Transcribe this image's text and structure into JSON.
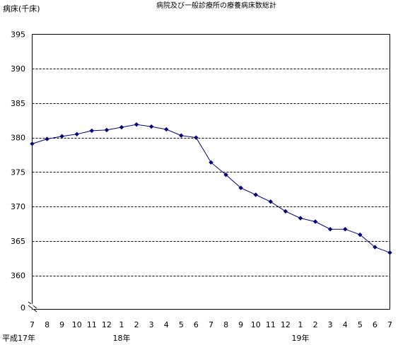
{
  "chart_data": {
    "type": "line",
    "title": "病院及び一般診療所の療養病床数総計",
    "ylabel": "病床(千床)",
    "xlabel": "",
    "y_tick_labels": [
      "395",
      "390",
      "385",
      "380",
      "375",
      "370",
      "365",
      "360",
      "0"
    ],
    "ylim": [
      360,
      395
    ],
    "axis_break": true,
    "grid": "horizontal dashed",
    "categories": [
      "7",
      "8",
      "9",
      "10",
      "11",
      "12",
      "1",
      "2",
      "3",
      "4",
      "5",
      "6",
      "7",
      "8",
      "9",
      "10",
      "11",
      "12",
      "1",
      "2",
      "3",
      "4",
      "5",
      "6",
      "7"
    ],
    "era_labels": [
      {
        "text": "平成17年",
        "index": 0
      },
      {
        "text": "18年",
        "index": 6
      },
      {
        "text": "19年",
        "index": 18
      }
    ],
    "series": [
      {
        "values": [
          379.1,
          379.8,
          380.2,
          380.5,
          381.0,
          381.1,
          381.5,
          381.9,
          381.6,
          381.2,
          380.3,
          380.0,
          376.4,
          374.6,
          372.7,
          371.7,
          370.7,
          369.3,
          368.3,
          367.8,
          366.7,
          366.7,
          365.9,
          364.1,
          363.3
        ],
        "color": "#000080"
      }
    ]
  }
}
